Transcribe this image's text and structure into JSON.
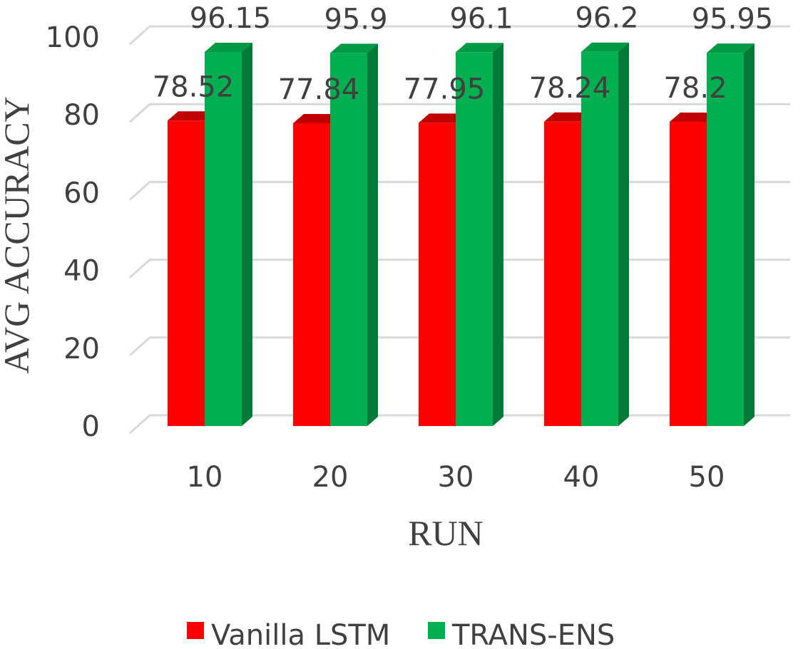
{
  "chart_data": {
    "type": "bar",
    "style": "3d-clustered-column",
    "title": "",
    "xlabel": "RUN",
    "ylabel": "AVG ACCURACY",
    "categories": [
      "10",
      "20",
      "30",
      "40",
      "50"
    ],
    "yticks": [
      "0",
      "20",
      "40",
      "60",
      "80",
      "100"
    ],
    "ylim": [
      0,
      100
    ],
    "grid": true,
    "legend_position": "bottom",
    "series": [
      {
        "name": "Vanilla LSTM",
        "values": [
          78.52,
          77.84,
          77.95,
          78.24,
          78.2
        ],
        "labels": [
          "78.52",
          "77.84",
          "77.95",
          "78.24",
          "78.2"
        ],
        "color": "#ff0000",
        "side_color": "#a50000",
        "top_color": "#c00000"
      },
      {
        "name": "TRANS-ENS",
        "values": [
          96.15,
          95.9,
          96.1,
          96.2,
          95.95
        ],
        "labels": [
          "96.15",
          "95.9",
          "96.1",
          "96.2",
          "95.95"
        ],
        "color": "#00b050",
        "side_color": "#007a37",
        "top_color": "#009944"
      }
    ]
  }
}
